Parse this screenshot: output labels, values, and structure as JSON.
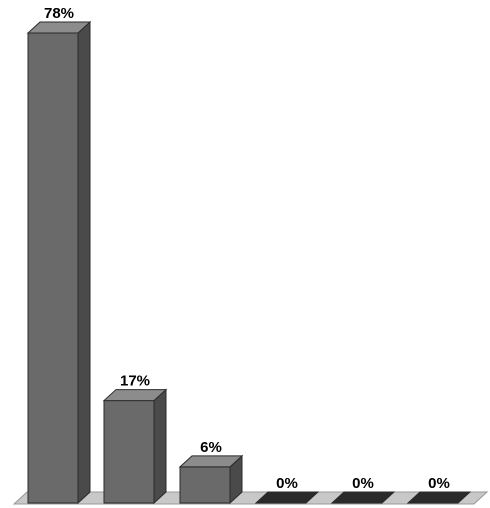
{
  "chart_data": {
    "type": "bar",
    "categories": [
      "",
      "",
      "",
      "",
      "",
      ""
    ],
    "values": [
      78,
      17,
      6,
      0,
      0,
      0
    ],
    "data_labels": [
      "78%",
      "17%",
      "6%",
      "0%",
      "0%",
      "0%"
    ],
    "ylim": [
      0,
      78
    ],
    "three_d": true,
    "grid": false,
    "legend": "none"
  },
  "colors": {
    "bar_front": "#6a6a6a",
    "bar_side": "#4a4a4a",
    "bar_top": "#8c8c8c",
    "floor": "#c8c8c8",
    "outline": "#2a2a2a"
  }
}
